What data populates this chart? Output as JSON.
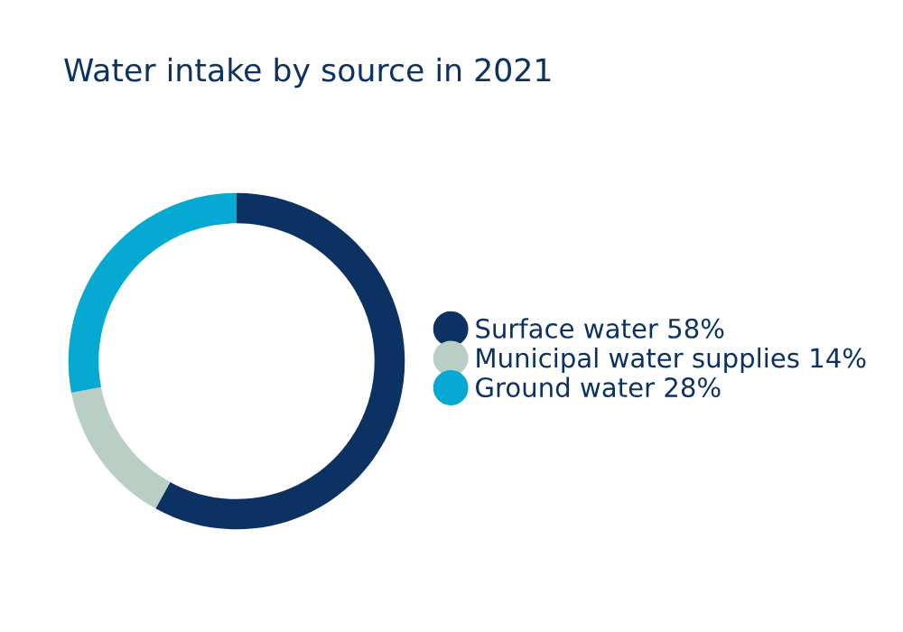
{
  "chart_data": {
    "type": "donut",
    "title": "Water intake by source in 2021",
    "categories": [
      "Surface water",
      "Municipal water supplies",
      "Ground water"
    ],
    "values": [
      58,
      14,
      28
    ],
    "value_labels": [
      "58%",
      "14%",
      "28%"
    ],
    "colors": [
      "#0b3263",
      "#b9cfc5",
      "#06a9d1"
    ],
    "legend": "right"
  }
}
